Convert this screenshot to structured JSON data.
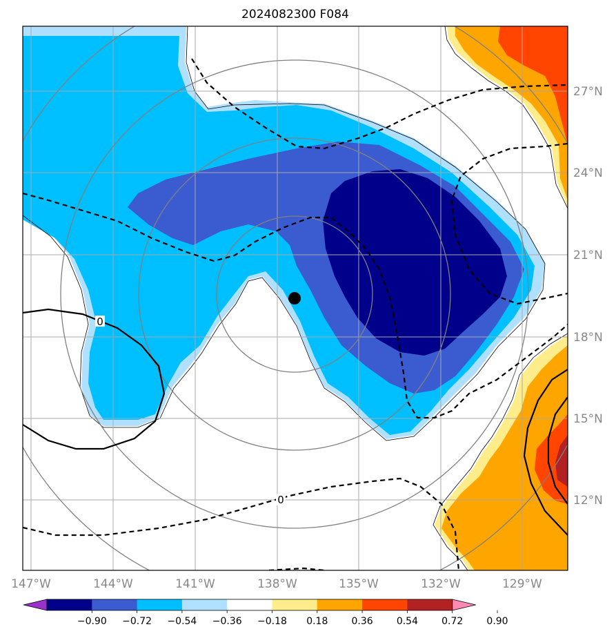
{
  "chart_data": {
    "type": "heatmap",
    "title": "2024082300 F084",
    "lon_ticks": [
      "147°W",
      "144°W",
      "141°W",
      "138°W",
      "135°W",
      "132°W",
      "129°W"
    ],
    "lat_ticks": [
      "27°N",
      "24°N",
      "21°N",
      "18°N",
      "15°N",
      "12°N"
    ],
    "lon_range": [
      -147.3,
      -127.4
    ],
    "lat_range": [
      9.5,
      29.3
    ],
    "center": {
      "lon": -137.5,
      "lat": 19.6
    },
    "range_rings_deg": [
      2.8,
      5.7,
      8.5,
      11.3
    ],
    "contour_labels": [
      "0",
      "0"
    ],
    "colorbar": {
      "levels": [
        "−0.90",
        "−0.72",
        "−0.54",
        "−0.36",
        "−0.18",
        "0.18",
        "0.36",
        "0.54",
        "0.72",
        "0.90"
      ],
      "colors": [
        "#9932cc",
        "#00008b",
        "#3b5bd0",
        "#00bfff",
        "#b0e0ff",
        "#ffffff",
        "#ffec8b",
        "#ffa500",
        "#ff4500",
        "#b22222",
        "#ff89b4"
      ],
      "extend": "both"
    },
    "grid": true
  }
}
